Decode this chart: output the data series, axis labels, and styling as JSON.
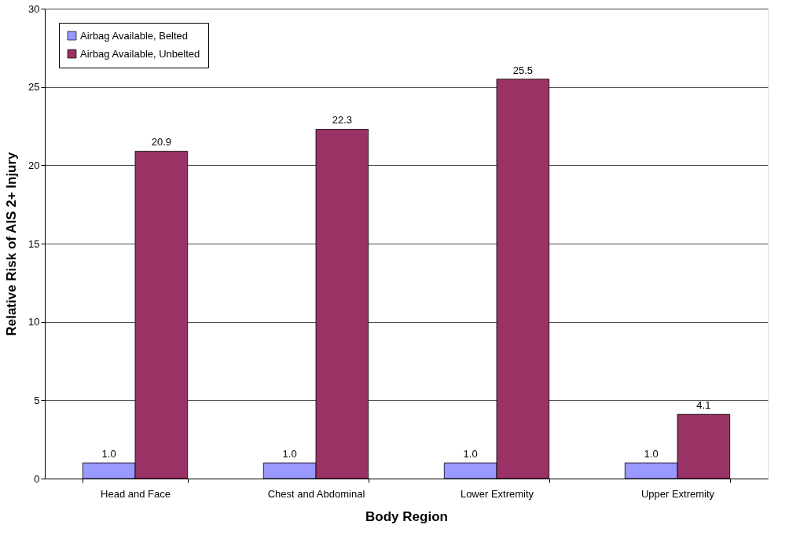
{
  "chart_data": {
    "type": "bar",
    "xlabel": "Body Region",
    "ylabel": "Relative Risk of AIS 2+ Injury",
    "categories": [
      "Head and Face",
      "Chest and Abdominal",
      "Lower Extremity",
      "Upper Extremity"
    ],
    "series": [
      {
        "name": "Airbag Available, Belted",
        "color": "#9999ff",
        "values": [
          1.0,
          1.0,
          1.0,
          1.0
        ],
        "value_labels": [
          "1.0",
          "1.0",
          "1.0",
          "1.0"
        ]
      },
      {
        "name": "Airbag Available, Unbelted",
        "color": "#993366",
        "values": [
          20.9,
          22.3,
          25.5,
          4.1
        ],
        "value_labels": [
          "20.9",
          "22.3",
          "25.5",
          "4.1"
        ]
      }
    ],
    "ylim": [
      0,
      30
    ],
    "yticks": [
      0,
      5,
      10,
      15,
      20,
      25,
      30
    ],
    "grid": "y",
    "legend": "top left"
  }
}
